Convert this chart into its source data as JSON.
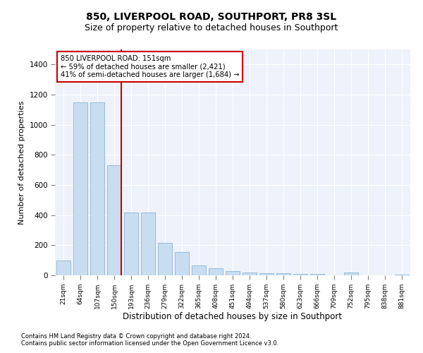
{
  "title": "850, LIVERPOOL ROAD, SOUTHPORT, PR8 3SL",
  "subtitle": "Size of property relative to detached houses in Southport",
  "xlabel": "Distribution of detached houses by size in Southport",
  "ylabel": "Number of detached properties",
  "categories": [
    "21sqm",
    "64sqm",
    "107sqm",
    "150sqm",
    "193sqm",
    "236sqm",
    "279sqm",
    "322sqm",
    "365sqm",
    "408sqm",
    "451sqm",
    "494sqm",
    "537sqm",
    "580sqm",
    "623sqm",
    "666sqm",
    "709sqm",
    "752sqm",
    "795sqm",
    "838sqm",
    "881sqm"
  ],
  "values": [
    100,
    1150,
    1150,
    730,
    415,
    415,
    215,
    155,
    65,
    45,
    30,
    20,
    12,
    12,
    8,
    8,
    0,
    20,
    0,
    0,
    5
  ],
  "bar_color": "#c9ddf0",
  "bar_edge_color": "#8ab4d8",
  "highlight_bar_index": 3,
  "highlight_line_color": "#cc0000",
  "annotation_text": "850 LIVERPOOL ROAD: 151sqm\n← 59% of detached houses are smaller (2,421)\n41% of semi-detached houses are larger (1,684) →",
  "annotation_box_color": "#cc0000",
  "ylim": [
    0,
    1500
  ],
  "yticks": [
    0,
    200,
    400,
    600,
    800,
    1000,
    1200,
    1400
  ],
  "plot_background": "#eef2fa",
  "footer_line1": "Contains HM Land Registry data © Crown copyright and database right 2024.",
  "footer_line2": "Contains public sector information licensed under the Open Government Licence v3.0.",
  "title_fontsize": 10,
  "subtitle_fontsize": 9,
  "xlabel_fontsize": 8.5,
  "ylabel_fontsize": 8
}
